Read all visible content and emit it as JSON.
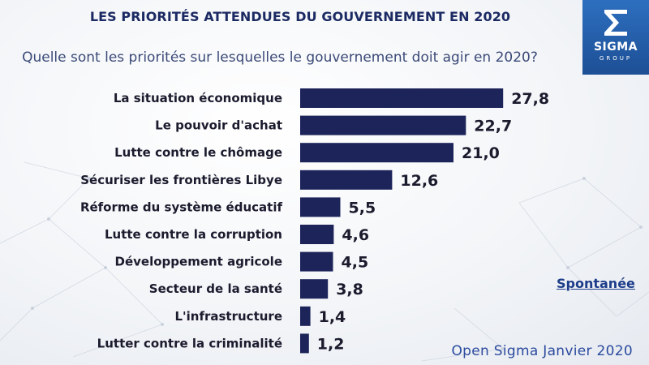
{
  "chart_data": {
    "type": "bar",
    "orientation": "horizontal",
    "title": "LES PRIORITÉS ATTENDUES DU GOUVERNEMENT EN 2020",
    "subtitle": "Quelle sont les priorités sur lesquelles le gouvernement doit agir en 2020?",
    "categories": [
      "La situation économique",
      "Le pouvoir d'achat",
      "Lutte contre le chômage",
      "Sécuriser les frontières Libye",
      "Réforme du système éducatif",
      "Lutte contre la corruption",
      "Développement agricole",
      "Secteur de la santé",
      "L'infrastructure",
      "Lutter contre la criminalité"
    ],
    "values": [
      27.8,
      22.7,
      21.0,
      12.6,
      5.5,
      4.6,
      4.5,
      3.8,
      1.4,
      1.2
    ],
    "value_labels": [
      "27,8",
      "22,7",
      "21,0",
      "12,6",
      "5,5",
      "4,6",
      "4,5",
      "3,8",
      "1,4",
      "1,2"
    ],
    "xlim": [
      0,
      30
    ],
    "bar_color": "#1c2459",
    "annotations": [
      "Spontanée"
    ]
  },
  "logo": {
    "word": "SIGMA",
    "sub": "GROUP"
  },
  "annotation": "Spontanée",
  "footer": "Open Sigma Janvier 2020",
  "colors": {
    "title": "#1c2a63",
    "bar": "#1c2459",
    "logo_bg": "#2d6fbf"
  }
}
